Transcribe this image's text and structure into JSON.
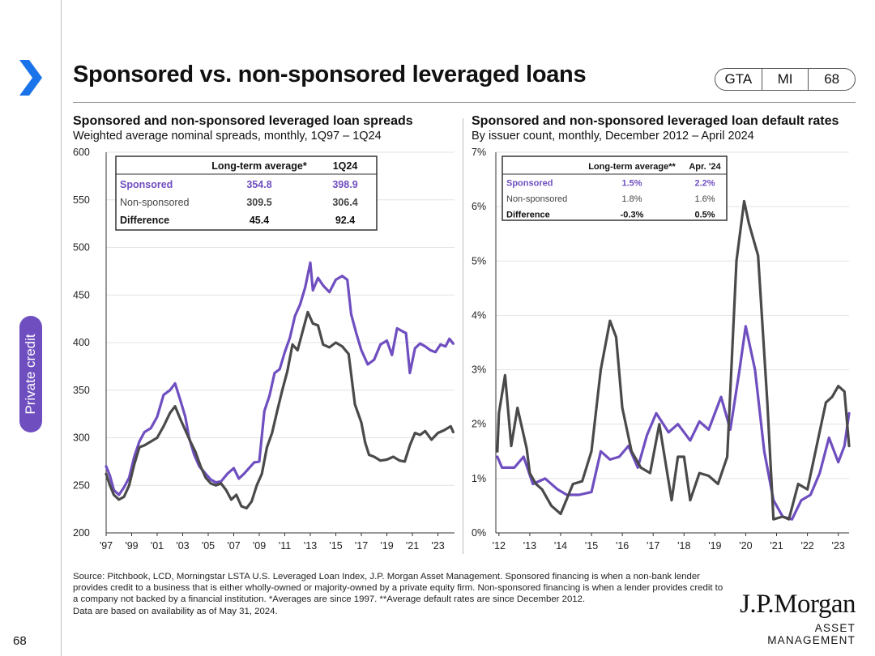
{
  "page": {
    "title": "Sponsored vs. non-sponsored leveraged loans",
    "badges": [
      "GTA",
      "MI",
      "68"
    ],
    "side_tab": "Private credit",
    "page_number": "68"
  },
  "colors": {
    "sponsored": "#6f4ec0",
    "non_sponsored": "#4a4a4a",
    "accent_arrow": "#1a73e8"
  },
  "footer": {
    "source": "Source: Pitchbook, LCD, Morningstar LSTA U.S. Leveraged Loan Index, J.P. Morgan Asset Management. Sponsored financing is when a non-bank lender provides credit to a business that is either wholly-owned or majority-owned by a private equity firm. Non-sponsored financing is when a lender provides credit to a company not backed by a financial institution. *Averages are since 1997. **Average default rates are since December 2012.",
    "note": "Data are based on availability as of May 31, 2024.",
    "brand": "J.P.Morgan",
    "brand_sub": "ASSET MANAGEMENT"
  },
  "chart_data": [
    {
      "type": "line",
      "title": "Sponsored and non-sponsored leveraged loan spreads",
      "subtitle": "Weighted average nominal spreads, monthly, 1Q97 – 1Q24",
      "ylim": [
        200,
        600
      ],
      "yticks": [
        "600",
        "550",
        "500",
        "450",
        "400",
        "350",
        "300",
        "250",
        "200"
      ],
      "xlim": [
        1997,
        2024.3
      ],
      "xticks": [
        "'97",
        "'99",
        "'01",
        "'03",
        "'05",
        "'07",
        "'09",
        "'11",
        "'13",
        "'15",
        "'17",
        "'19",
        "'21",
        "'23"
      ],
      "xtick_values": [
        1997,
        1999,
        2001,
        2003,
        2005,
        2007,
        2009,
        2011,
        2013,
        2015,
        2017,
        2019,
        2021,
        2023
      ],
      "table": {
        "headers": [
          "",
          "Long-term average*",
          "1Q24"
        ],
        "rows": [
          [
            "Sponsored",
            "354.8",
            "398.9"
          ],
          [
            "Non-sponsored",
            "309.5",
            "306.4"
          ],
          [
            "Difference",
            "45.4",
            "92.4"
          ]
        ]
      },
      "series": [
        {
          "name": "Sponsored",
          "x": [
            1997.0,
            1997.3,
            1997.6,
            1998.0,
            1998.4,
            1998.8,
            1999.2,
            1999.6,
            2000.0,
            2000.5,
            2001.0,
            2001.5,
            2002.0,
            2002.4,
            2002.8,
            2003.2,
            2003.5,
            2003.9,
            2004.3,
            2004.8,
            2005.2,
            2005.6,
            2006.0,
            2006.5,
            2007.0,
            2007.4,
            2007.8,
            2008.2,
            2008.6,
            2009.0,
            2009.4,
            2009.8,
            2010.2,
            2010.6,
            2011.0,
            2011.4,
            2011.8,
            2012.2,
            2012.6,
            2013.0,
            2013.2,
            2013.6,
            2014.0,
            2014.5,
            2015.0,
            2015.5,
            2015.9,
            2016.2,
            2016.6,
            2017.0,
            2017.5,
            2018.0,
            2018.5,
            2019.0,
            2019.4,
            2019.8,
            2020.2,
            2020.5,
            2020.8,
            2021.2,
            2021.6,
            2022.0,
            2022.4,
            2022.8,
            2023.2,
            2023.6,
            2023.9,
            2024.2
          ],
          "values": [
            270,
            260,
            245,
            240,
            248,
            258,
            280,
            296,
            306,
            310,
            322,
            345,
            350,
            357,
            340,
            322,
            300,
            282,
            270,
            262,
            256,
            253,
            254,
            262,
            268,
            257,
            262,
            268,
            274,
            275,
            328,
            344,
            368,
            372,
            390,
            405,
            428,
            440,
            458,
            484,
            455,
            468,
            460,
            453,
            466,
            470,
            466,
            430,
            410,
            392,
            377,
            382,
            398,
            402,
            387,
            415,
            412,
            410,
            368,
            394,
            399,
            396,
            392,
            390,
            398,
            396,
            404,
            399
          ]
        },
        {
          "name": "Non-sponsored",
          "x": [
            1997.0,
            1997.3,
            1997.6,
            1998.0,
            1998.4,
            1998.8,
            1999.2,
            1999.6,
            2000.0,
            2000.5,
            2001.0,
            2001.5,
            2002.0,
            2002.4,
            2002.8,
            2003.2,
            2003.6,
            2004.0,
            2004.4,
            2004.8,
            2005.2,
            2005.6,
            2006.0,
            2006.4,
            2006.8,
            2007.2,
            2007.6,
            2008.0,
            2008.4,
            2008.8,
            2009.2,
            2009.6,
            2010.0,
            2010.4,
            2010.8,
            2011.2,
            2011.6,
            2012.0,
            2012.4,
            2012.8,
            2013.2,
            2013.6,
            2014.0,
            2014.5,
            2015.0,
            2015.5,
            2016.0,
            2016.5,
            2017.0,
            2017.3,
            2017.6,
            2018.0,
            2018.5,
            2019.0,
            2019.5,
            2020.0,
            2020.4,
            2020.8,
            2021.2,
            2021.6,
            2022.0,
            2022.5,
            2023.0,
            2023.5,
            2024.0,
            2024.2
          ],
          "values": [
            262,
            250,
            240,
            235,
            238,
            250,
            272,
            290,
            292,
            296,
            300,
            312,
            326,
            333,
            320,
            308,
            296,
            285,
            270,
            258,
            252,
            250,
            252,
            245,
            235,
            240,
            228,
            226,
            233,
            250,
            262,
            290,
            305,
            328,
            350,
            370,
            398,
            392,
            412,
            432,
            420,
            418,
            398,
            395,
            400,
            396,
            388,
            335,
            316,
            295,
            282,
            280,
            276,
            277,
            280,
            276,
            275,
            292,
            305,
            303,
            307,
            298,
            305,
            308,
            312,
            306
          ]
        }
      ]
    },
    {
      "type": "line",
      "title": "Sponsored and non-sponsored leveraged loan default rates",
      "subtitle": "By issuer count, monthly, December 2012 – April 2024",
      "ylim": [
        0,
        7
      ],
      "yticks": [
        "7%",
        "6%",
        "5%",
        "4%",
        "3%",
        "2%",
        "1%",
        "0%"
      ],
      "xlim": [
        2011.9,
        2023.35
      ],
      "xticks": [
        "'12",
        "'13",
        "'14",
        "'15",
        "'16",
        "'17",
        "'18",
        "'19",
        "'20",
        "'21",
        "'22",
        "'23"
      ],
      "xtick_values": [
        2012,
        2013,
        2014,
        2015,
        2016,
        2017,
        2018,
        2019,
        2020,
        2021,
        2022,
        2023
      ],
      "table": {
        "headers": [
          "",
          "Long-term average**",
          "Apr. '24"
        ],
        "rows": [
          [
            "Sponsored",
            "1.5%",
            "2.2%"
          ],
          [
            "Non-sponsored",
            "1.8%",
            "1.6%"
          ],
          [
            "Difference",
            "-0.3%",
            "0.5%"
          ]
        ]
      },
      "series": [
        {
          "name": "Sponsored",
          "x": [
            2011.95,
            2012.1,
            2012.5,
            2012.8,
            2013.1,
            2013.5,
            2013.9,
            2014.2,
            2014.6,
            2015.0,
            2015.3,
            2015.6,
            2015.9,
            2016.2,
            2016.5,
            2016.8,
            2017.1,
            2017.5,
            2017.8,
            2018.2,
            2018.5,
            2018.8,
            2019.2,
            2019.5,
            2019.8,
            2020.0,
            2020.3,
            2020.6,
            2020.9,
            2021.2,
            2021.5,
            2021.8,
            2022.1,
            2022.4,
            2022.7,
            2023.0,
            2023.2,
            2023.35
          ],
          "values": [
            1.4,
            1.2,
            1.2,
            1.4,
            0.9,
            1.0,
            0.8,
            0.7,
            0.7,
            0.75,
            1.5,
            1.35,
            1.4,
            1.6,
            1.2,
            1.8,
            2.2,
            1.85,
            2.0,
            1.7,
            2.05,
            1.9,
            2.5,
            1.9,
            3.0,
            3.8,
            3.0,
            1.5,
            0.6,
            0.3,
            0.25,
            0.6,
            0.7,
            1.1,
            1.75,
            1.3,
            1.6,
            2.2
          ]
        },
        {
          "name": "Non-sponsored",
          "x": [
            2011.95,
            2012.0,
            2012.2,
            2012.4,
            2012.6,
            2012.9,
            2013.0,
            2013.2,
            2013.4,
            2013.7,
            2014.0,
            2014.4,
            2014.7,
            2015.0,
            2015.3,
            2015.6,
            2015.8,
            2016.0,
            2016.3,
            2016.6,
            2016.9,
            2017.2,
            2017.4,
            2017.6,
            2017.8,
            2018.0,
            2018.2,
            2018.5,
            2018.8,
            2019.1,
            2019.4,
            2019.7,
            2019.95,
            2020.1,
            2020.4,
            2020.7,
            2020.9,
            2021.2,
            2021.4,
            2021.7,
            2022.0,
            2022.3,
            2022.6,
            2022.8,
            2023.0,
            2023.2,
            2023.35
          ],
          "values": [
            1.5,
            2.2,
            2.9,
            1.6,
            2.3,
            1.55,
            1.1,
            0.9,
            0.8,
            0.5,
            0.35,
            0.9,
            0.95,
            1.5,
            3.0,
            3.9,
            3.6,
            2.3,
            1.5,
            1.2,
            1.1,
            2.0,
            1.3,
            0.6,
            1.4,
            1.4,
            0.6,
            1.1,
            1.05,
            0.9,
            1.4,
            5.0,
            6.1,
            5.7,
            5.1,
            2.4,
            0.25,
            0.3,
            0.25,
            0.9,
            0.8,
            1.6,
            2.4,
            2.5,
            2.7,
            2.6,
            1.6
          ]
        }
      ]
    }
  ]
}
